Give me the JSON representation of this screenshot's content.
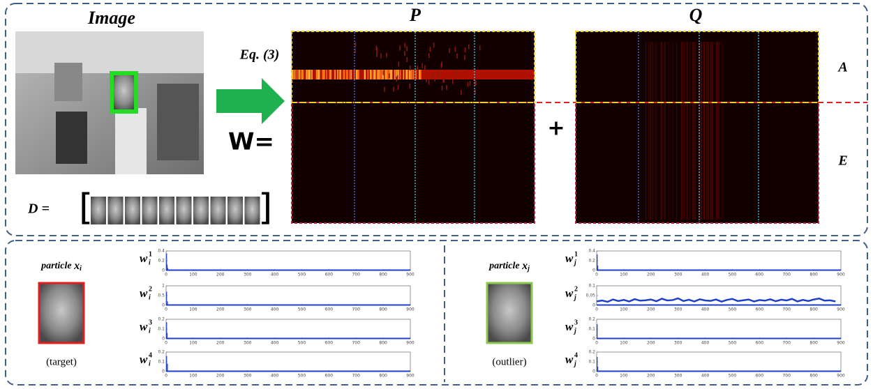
{
  "top": {
    "image_title": "Image",
    "p_title": "P",
    "q_title": "Q",
    "equation": "Eq. (3)",
    "w_label": "W=",
    "plus": "+",
    "row_a": "A",
    "row_e": "E",
    "dictionary": "D = "
  },
  "bottom": {
    "line_color": "#1f3fc8",
    "panels": [
      {
        "particle": {
          "text": "particle ",
          "var": "x",
          "sub": "i"
        },
        "caption": "(target)",
        "frame_color": "#e02020",
        "plots": [
          {
            "label": {
              "var": "w",
              "sub": "i",
              "sup": "1"
            },
            "style": "stem",
            "xlim": [
              0,
              900
            ],
            "xticks": [
              0,
              100,
              200,
              300,
              400,
              500,
              600,
              700,
              800,
              900
            ],
            "ylim": [
              0,
              0.4
            ],
            "yticks": [
              0,
              0.2,
              0.4
            ],
            "x": [
              2,
              4,
              6
            ],
            "values": [
              0.35,
              0.12,
              0.05
            ]
          },
          {
            "label": {
              "var": "w",
              "sub": "i",
              "sup": "2"
            },
            "style": "stem",
            "xlim": [
              0,
              900
            ],
            "xticks": [
              0,
              100,
              200,
              300,
              400,
              500,
              600,
              700,
              800,
              900
            ],
            "ylim": [
              0,
              1
            ],
            "yticks": [
              0,
              0.5,
              1
            ],
            "x": [
              2,
              5
            ],
            "values": [
              0.7,
              0.2
            ]
          },
          {
            "label": {
              "var": "w",
              "sub": "i",
              "sup": "3"
            },
            "style": "stem",
            "xlim": [
              0,
              900
            ],
            "xticks": [
              0,
              100,
              200,
              300,
              400,
              500,
              600,
              700,
              800,
              900
            ],
            "ylim": [
              0,
              0.2
            ],
            "yticks": [
              0,
              0.1,
              0.2
            ],
            "x": [
              2,
              4
            ],
            "values": [
              0.17,
              0.06
            ]
          },
          {
            "label": {
              "var": "w",
              "sub": "i",
              "sup": "4"
            },
            "style": "stem",
            "xlim": [
              0,
              900
            ],
            "xticks": [
              0,
              100,
              200,
              300,
              400,
              500,
              600,
              700,
              800,
              900
            ],
            "ylim": [
              0,
              0.2
            ],
            "yticks": [
              0,
              0.1,
              0.2
            ],
            "x": [
              2,
              5
            ],
            "values": [
              0.16,
              0.08
            ]
          }
        ]
      },
      {
        "particle": {
          "text": "particle ",
          "var": "x",
          "sub": "j"
        },
        "caption": "(outlier)",
        "frame_color": "#8cc850",
        "plots": [
          {
            "label": {
              "var": "w",
              "sub": "j",
              "sup": "1"
            },
            "style": "stem",
            "xlim": [
              0,
              900
            ],
            "xticks": [
              0,
              100,
              200,
              300,
              400,
              500,
              600,
              700,
              800,
              900
            ],
            "ylim": [
              0,
              0.4
            ],
            "yticks": [
              0,
              0.2,
              0.4
            ],
            "x": [
              2,
              4
            ],
            "values": [
              0.33,
              0.1
            ]
          },
          {
            "label": {
              "var": "w",
              "sub": "j",
              "sup": "2"
            },
            "style": "line",
            "xlim": [
              0,
              900
            ],
            "xticks": [
              0,
              100,
              200,
              300,
              400,
              500,
              600,
              700,
              800,
              900
            ],
            "ylim": [
              0,
              0.1
            ],
            "yticks": [
              0,
              0.05,
              0.1
            ],
            "x": [
              0,
              20,
              40,
              60,
              80,
              100,
              120,
              140,
              160,
              180,
              200,
              220,
              240,
              260,
              280,
              300,
              320,
              340,
              360,
              380,
              400,
              420,
              440,
              460,
              480,
              500,
              520,
              540,
              560,
              580,
              600,
              620,
              640,
              660,
              680,
              700,
              720,
              740,
              760,
              780,
              800,
              820,
              840,
              860,
              880
            ],
            "values": [
              0.02,
              0.025,
              0.018,
              0.03,
              0.022,
              0.028,
              0.02,
              0.032,
              0.024,
              0.026,
              0.03,
              0.021,
              0.034,
              0.025,
              0.027,
              0.036,
              0.022,
              0.029,
              0.02,
              0.031,
              0.025,
              0.023,
              0.03,
              0.019,
              0.028,
              0.033,
              0.022,
              0.026,
              0.03,
              0.02,
              0.027,
              0.024,
              0.031,
              0.021,
              0.029,
              0.025,
              0.033,
              0.02,
              0.028,
              0.022,
              0.03,
              0.035,
              0.024,
              0.026,
              0.02
            ]
          },
          {
            "label": {
              "var": "w",
              "sub": "j",
              "sup": "3"
            },
            "style": "stem",
            "xlim": [
              0,
              900
            ],
            "xticks": [
              0,
              100,
              200,
              300,
              400,
              500,
              600,
              700,
              800,
              900
            ],
            "ylim": [
              0,
              0.2
            ],
            "yticks": [
              0,
              0.1,
              0.2
            ],
            "x": [
              2
            ],
            "values": [
              0.15
            ]
          },
          {
            "label": {
              "var": "w",
              "sub": "j",
              "sup": "4"
            },
            "style": "stem",
            "xlim": [
              0,
              900
            ],
            "xticks": [
              0,
              100,
              200,
              300,
              400,
              500,
              600,
              700,
              800,
              900
            ],
            "ylim": [
              0,
              0.2
            ],
            "yticks": [
              0,
              0.1,
              0.2
            ],
            "x": [
              2,
              4
            ],
            "values": [
              0.15,
              0.05
            ]
          }
        ]
      }
    ]
  }
}
